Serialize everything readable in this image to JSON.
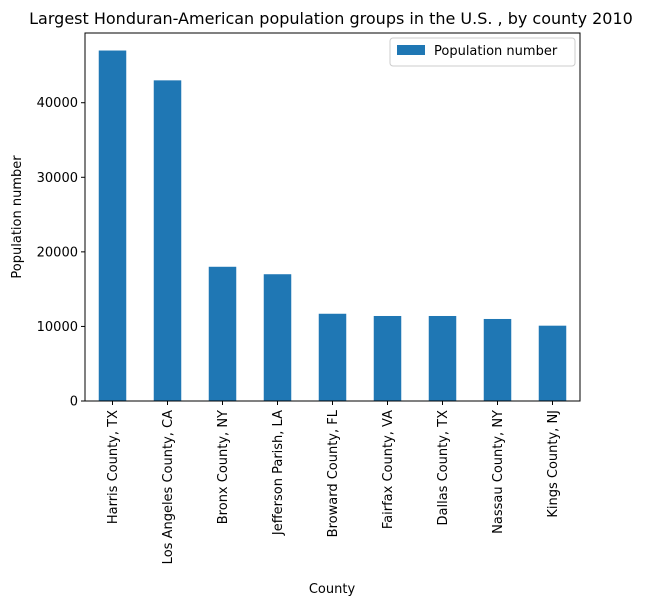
{
  "chart_data": {
    "type": "bar",
    "title": "Largest Honduran-American population groups in the U.S. , by county 2010",
    "xlabel": "County",
    "ylabel": "Population number",
    "categories": [
      "Harris County, TX",
      "Los Angeles County, CA",
      "Bronx County, NY",
      "Jefferson Parish, LA",
      "Broward County, FL",
      "Fairfax County, VA",
      "Dallas County, TX",
      "Nassau County, NY",
      "Kings County, NJ"
    ],
    "series": [
      {
        "name": "Population number",
        "color": "#1f77b4",
        "values": [
          47000,
          43000,
          18000,
          17000,
          11700,
          11400,
          11400,
          11000,
          10100
        ]
      }
    ],
    "ylim": [
      0,
      49350
    ],
    "yticks": [
      0,
      10000,
      20000,
      30000,
      40000
    ],
    "ytick_labels": [
      "0",
      "10000",
      "20000",
      "30000",
      "40000"
    ],
    "grid": false,
    "legend": "top-right"
  }
}
